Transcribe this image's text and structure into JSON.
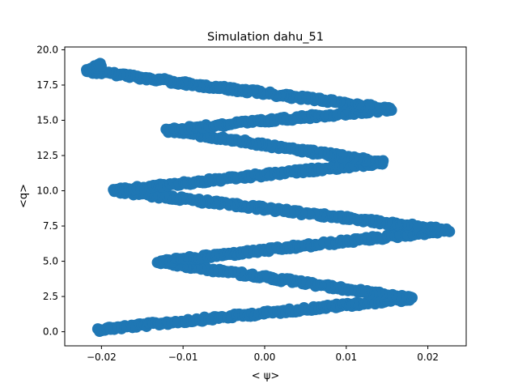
{
  "chart_data": {
    "type": "scatter",
    "title": "Simulation dahu_51",
    "xlabel": "< ψ>",
    "ylabel": "<q>",
    "xlim": [
      -0.0245,
      0.0247
    ],
    "ylim": [
      -1.0,
      20.2
    ],
    "xticks": [
      {
        "value": -0.02,
        "label": "−0.02"
      },
      {
        "value": -0.01,
        "label": "−0.01"
      },
      {
        "value": 0.0,
        "label": "0.00"
      },
      {
        "value": 0.01,
        "label": "0.01"
      },
      {
        "value": 0.02,
        "label": "0.02"
      }
    ],
    "yticks": [
      {
        "value": 0.0,
        "label": "0.0"
      },
      {
        "value": 2.5,
        "label": "2.5"
      },
      {
        "value": 5.0,
        "label": "5.0"
      },
      {
        "value": 7.5,
        "label": "7.5"
      },
      {
        "value": 10.0,
        "label": "10.0"
      },
      {
        "value": 12.5,
        "label": "12.5"
      },
      {
        "value": 15.0,
        "label": "15.0"
      },
      {
        "value": 17.5,
        "label": "17.5"
      },
      {
        "value": 20.0,
        "label": "20.0"
      }
    ],
    "grid": false,
    "legend": "none",
    "series": [
      {
        "color": "#1f77b4",
        "points": [
          [
            -0.0205,
            0.15
          ],
          [
            0.018,
            2.35
          ],
          [
            -0.013,
            4.95
          ],
          [
            0.0225,
            7.2
          ],
          [
            -0.0185,
            10.0
          ],
          [
            0.0145,
            12.0
          ],
          [
            -0.012,
            14.3
          ],
          [
            0.0155,
            15.8
          ],
          [
            -0.0218,
            18.5
          ],
          [
            -0.02,
            19.0
          ]
        ]
      }
    ]
  }
}
